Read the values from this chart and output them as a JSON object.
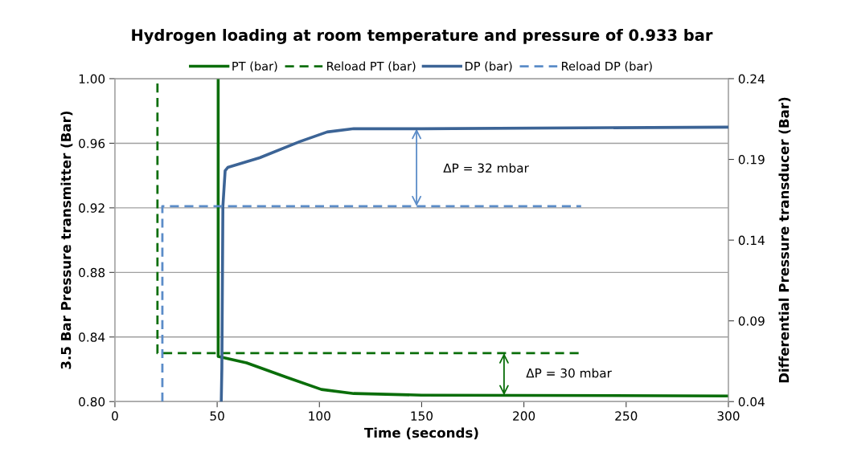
{
  "chart_data": {
    "type": "line",
    "title": "Hydrogen loading at room temperature and pressure of 0.933 bar",
    "xlabel": "Time (seconds)",
    "ylabel": "3.5 Bar Pressure transmitter (Bar)",
    "y2label": "Differential Pressure transducer (Bar)",
    "xlim": [
      0,
      300
    ],
    "xticks": [
      0,
      50,
      100,
      150,
      200,
      250,
      300
    ],
    "ylim": [
      0.8,
      1.0
    ],
    "yticks": [
      {
        "value": 0.8,
        "label": "0.80"
      },
      {
        "value": 0.84,
        "label": "0.84"
      },
      {
        "value": 0.88,
        "label": "0.88"
      },
      {
        "value": 0.92,
        "label": "0.92"
      },
      {
        "value": 0.96,
        "label": "0.96"
      },
      {
        "value": 1.0,
        "label": "1.00"
      }
    ],
    "y2lim": [
      0.04,
      0.24
    ],
    "y2ticks": [
      0.04,
      0.09,
      0.14,
      0.19,
      0.24
    ],
    "grid": "y",
    "legend": "top",
    "series": [
      {
        "name": "PT (bar)",
        "color": "#0a6e0a",
        "line_style": "solid",
        "x": [
          50.5,
          50.5,
          64.4,
          84,
          101,
          116.8,
          150,
          300
        ],
        "values": [
          1.0,
          0.828,
          0.824,
          0.815,
          0.8075,
          0.805,
          0.804,
          0.8035
        ]
      },
      {
        "name": "Reload PT (bar)",
        "color": "#0a6e0a",
        "line_style": "dashed",
        "x": [
          20.8,
          20.8,
          228
        ],
        "values": [
          0.997,
          0.83,
          0.83
        ]
      },
      {
        "name": "DP (bar)",
        "color": "#3c6496",
        "line_style": "solid",
        "axis": "y2",
        "x": [
          52,
          52.3,
          52.8,
          53.9,
          55.2,
          70.8,
          90.4,
          103.8,
          116.8,
          150,
          300
        ],
        "values": [
          0.04,
          0.061,
          0.161,
          0.183,
          0.185,
          0.191,
          0.201,
          0.207,
          0.209,
          0.209,
          0.21
        ]
      },
      {
        "name": "Reload DP (bar)",
        "color": "#5b8cc8",
        "line_style": "dashed",
        "axis": "y2",
        "x": [
          23.2,
          23.2,
          228
        ],
        "values": [
          0.04,
          0.161,
          0.161
        ]
      }
    ],
    "annotations": [
      "ΔP = 32 mbar",
      "ΔP = 30 mbar"
    ]
  }
}
